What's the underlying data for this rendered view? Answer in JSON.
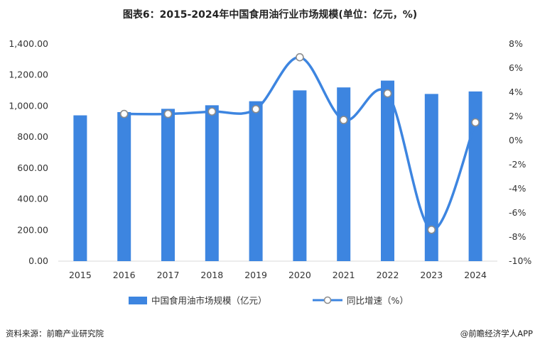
{
  "title": "图表6：2015-2024年中国食用油行业市场规模(单位：亿元，%)",
  "source": "资料来源：前瞻产业研究院",
  "credit": "@前瞻经济学人APP",
  "chart_data": {
    "type": "bar",
    "categories": [
      "2015",
      "2016",
      "2017",
      "2018",
      "2019",
      "2020",
      "2021",
      "2022",
      "2023",
      "2024"
    ],
    "series": [
      {
        "name": "中国食用油市场规模（亿元）",
        "type": "bar",
        "axis": "left",
        "color": "#3d85e0",
        "values": [
          940,
          961,
          982,
          1005,
          1031,
          1101,
          1120,
          1164,
          1078,
          1094
        ]
      },
      {
        "name": "同比增速（%）",
        "type": "line",
        "axis": "right",
        "color": "#3d85e0",
        "values": [
          null,
          2.2,
          2.2,
          2.4,
          2.6,
          6.9,
          1.7,
          3.9,
          -7.4,
          1.5
        ]
      }
    ],
    "y_left": {
      "min": 0,
      "max": 1400,
      "step": 200,
      "ticks": [
        "0.00",
        "200.00",
        "400.00",
        "600.00",
        "800.00",
        "1,000.00",
        "1,200.00",
        "1,400.00"
      ]
    },
    "y_right": {
      "min": -10,
      "max": 8,
      "step": 2,
      "ticks": [
        "-10%",
        "-8%",
        "-6%",
        "-4%",
        "-2%",
        "0%",
        "2%",
        "4%",
        "6%",
        "8%"
      ]
    },
    "grid": false,
    "legend_position": "bottom"
  }
}
